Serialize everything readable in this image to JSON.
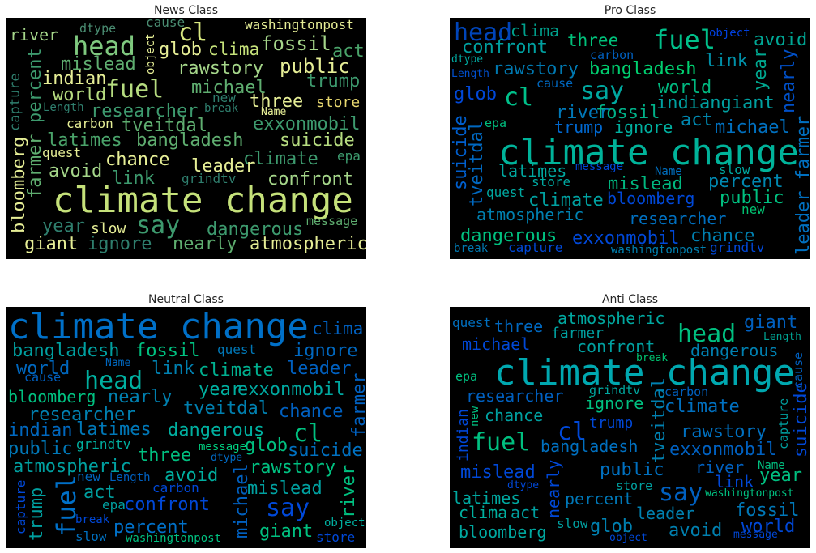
{
  "panels": [
    {
      "title": "News Class",
      "words": [
        "climate change",
        "cl",
        "head",
        "fuel",
        "say",
        "river",
        "dtype",
        "cause",
        "object",
        "washingtonpost",
        "glob",
        "clima",
        "fossil",
        "act",
        "mislead",
        "percent",
        "capture",
        "bloomberg",
        "farmer",
        "rawstory",
        "public",
        "indian",
        "trump",
        "world",
        "michael",
        "new",
        "three",
        "store",
        "Length",
        "researcher",
        "break",
        "Name",
        "carbon",
        "tveitdal",
        "exxonmobil",
        "latimes",
        "bangladesh",
        "suicide",
        "quest",
        "chance",
        "climate",
        "epa",
        "avoid",
        "leader",
        "link",
        "grindtv",
        "confront",
        "year",
        "slow",
        "dangerous",
        "message",
        "giant",
        "ignore",
        "nearly",
        "atmospheric"
      ]
    },
    {
      "title": "Pro Class",
      "words": [
        "climate change",
        "head",
        "clima",
        "three",
        "fuel",
        "object",
        "avoid",
        "confront",
        "dtype",
        "carbon",
        "link",
        "rawstory",
        "bangladesh",
        "Length",
        "year",
        "nearly",
        "leader farmer",
        "say",
        "cause",
        "world",
        "glob",
        "cl",
        "indiangiant",
        "river",
        "fossil",
        "act",
        "suicide",
        "tveitdal",
        "epa",
        "trump",
        "ignore",
        "michael",
        "message",
        "latimes",
        "Name",
        "slow",
        "store",
        "mislead",
        "percent",
        "quest",
        "climate",
        "bloomberg",
        "public",
        "new",
        "atmospheric",
        "researcher",
        "dangerous",
        "exxonmobil",
        "chance",
        "break",
        "capture",
        "washingtonpost",
        "grindtv"
      ]
    },
    {
      "title": "Neutral Class",
      "words": [
        "climate change",
        "clima",
        "bangladesh",
        "fossil",
        "quest",
        "ignore",
        "Name",
        "world",
        "link",
        "climate",
        "leader",
        "cause",
        "head",
        "farmer",
        "year",
        "exxonmobil",
        "bloomberg",
        "nearly",
        "tveitdal",
        "chance",
        "researcher",
        "cl",
        "indian",
        "latimes",
        "dangerous",
        "glob",
        "suicide",
        "public",
        "grindtv",
        "message",
        "dtype",
        "three",
        "atmospheric",
        "rawstory",
        "river",
        "new",
        "Length",
        "avoid",
        "michael",
        "capture",
        "trump",
        "fuel",
        "carbon",
        "act",
        "mislead",
        "epa",
        "confront",
        "say",
        "break",
        "object",
        "percent",
        "giant",
        "slow",
        "washingtonpost",
        "store"
      ]
    },
    {
      "title": "Anti Class",
      "words": [
        "climate change",
        "quest",
        "three",
        "atmospheric",
        "giant",
        "farmer",
        "head",
        "Length",
        "michael",
        "confront",
        "dangerous",
        "break",
        "cause",
        "epa",
        "grindtv",
        "carbon",
        "researcher",
        "ignore",
        "climate",
        "tveitdal",
        "indian",
        "new",
        "capture",
        "suicide",
        "chance",
        "trump",
        "rawstory",
        "cl",
        "fuel",
        "bangladesh",
        "exxonmobil",
        "nearly",
        "river",
        "Name",
        "public",
        "year",
        "mislead",
        "dtype",
        "link",
        "store",
        "say",
        "washingtonpost",
        "latimes",
        "percent",
        "fossil",
        "clima",
        "act",
        "leader",
        "slow",
        "glob",
        "world",
        "bloomberg",
        "avoid",
        "message",
        "object"
      ]
    }
  ]
}
